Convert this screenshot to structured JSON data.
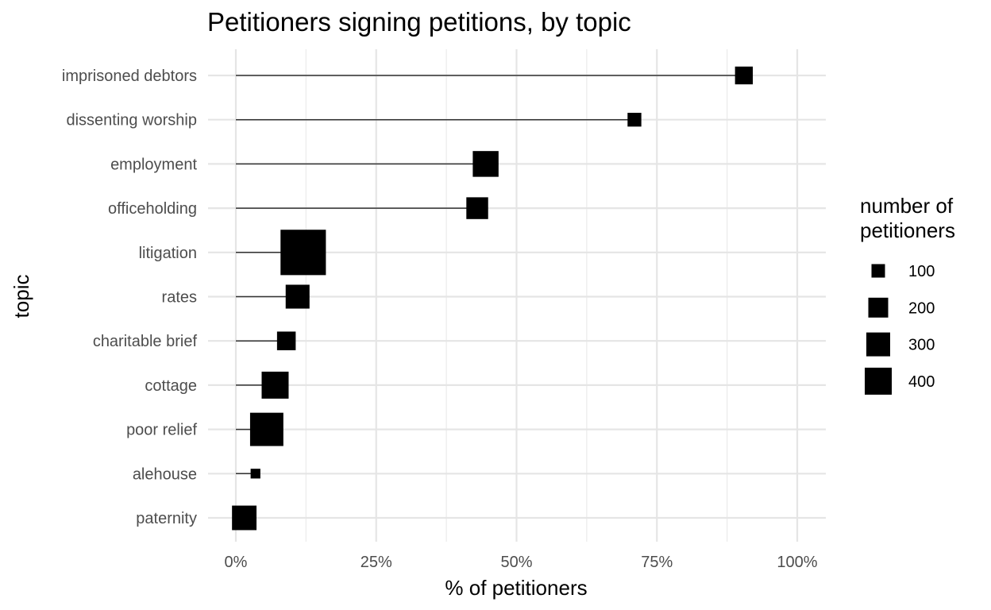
{
  "chart_data": {
    "type": "dot",
    "title": "Petitioners signing petitions, by topic",
    "xlabel": "% of petitioners",
    "ylabel": "topic",
    "xlim": [
      0,
      100
    ],
    "x_ticks": [
      "0%",
      "25%",
      "50%",
      "75%",
      "100%"
    ],
    "x_tick_values": [
      0,
      25,
      50,
      75,
      100
    ],
    "grid": true,
    "legend": {
      "title_line1": "number of",
      "title_line2": "petitioners",
      "placement": "right",
      "entries": [
        {
          "label": "100",
          "value": 100
        },
        {
          "label": "200",
          "value": 200
        },
        {
          "label": "300",
          "value": 300
        },
        {
          "label": "400",
          "value": 400
        }
      ]
    },
    "categories": [
      "imprisoned debtors",
      "dissenting worship",
      "employment",
      "officeholding",
      "litigation",
      "rates",
      "charitable brief",
      "cottage",
      "poor relief",
      "alehouse",
      "paternity"
    ],
    "values": [
      90.5,
      71,
      44.5,
      43,
      12,
      11,
      9,
      7,
      5.5,
      3.5,
      1.5
    ],
    "sizes": [
      100,
      60,
      210,
      150,
      650,
      180,
      110,
      230,
      350,
      30,
      190
    ],
    "point_color": "#000000",
    "segment_color": "#333333"
  }
}
